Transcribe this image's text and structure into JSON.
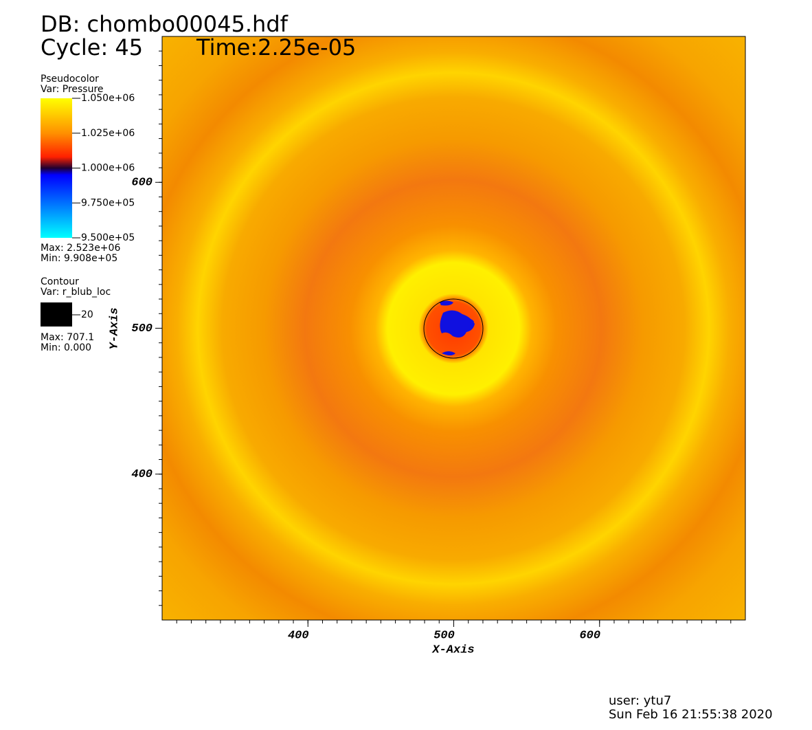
{
  "header": {
    "database": "DB: chombo00045.hdf",
    "cycle": "Cycle: 45",
    "time": "Time:2.25e-05"
  },
  "pseudocolor": {
    "title": "Pseudocolor",
    "variable": "Var: Pressure",
    "lim": [
      950000,
      1050000
    ],
    "ticks": [
      {
        "value": 1050000,
        "label": "1.050e+06"
      },
      {
        "value": 1025000,
        "label": "1.025e+06"
      },
      {
        "value": 1000000,
        "label": "1.000e+06"
      },
      {
        "value": 975000,
        "label": "9.750e+05"
      },
      {
        "value": 950000,
        "label": "9.500e+05"
      }
    ],
    "max": "Max: 2.523e+06",
    "min": "Min: 9.908e+05"
  },
  "contour": {
    "title": "Contour",
    "variable": "Var: r_blub_loc",
    "level": 20,
    "max": "Max: 707.1",
    "min": "Min: 0.000"
  },
  "axes": {
    "x": {
      "label": "X-Axis",
      "lim": [
        300,
        700
      ],
      "ticks": [
        400,
        500,
        600
      ]
    },
    "y": {
      "label": "Y-Axis",
      "lim": [
        300,
        700
      ],
      "ticks": [
        400,
        500,
        600
      ]
    }
  },
  "footer": {
    "user": "user: ytu7",
    "date": "Sun Feb 16 21:55:38 2020"
  }
}
